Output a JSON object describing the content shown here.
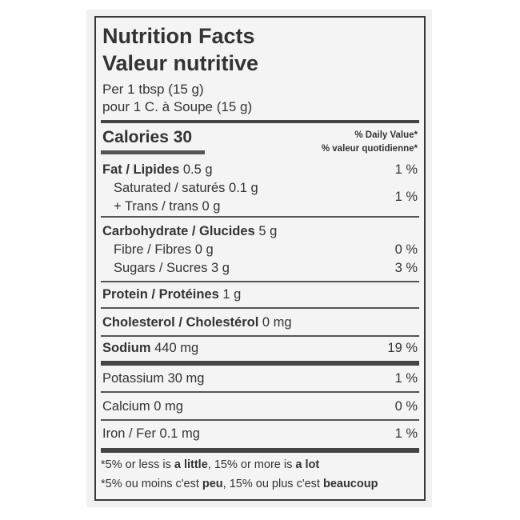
{
  "title_en": "Nutrition Facts",
  "title_fr": "Valeur nutritive",
  "serving_en": "Per 1 tbsp (15 g)",
  "serving_fr": "pour 1 C. à Soupe (15 g)",
  "calories": {
    "label": "Calories",
    "value": "30"
  },
  "dv_header_en": "% Daily Value*",
  "dv_header_fr": "% valeur quotidienne*",
  "nutrients": {
    "fat": {
      "label": "Fat / Lipides",
      "amount": "0.5 g",
      "dv": "1 %"
    },
    "saturated": {
      "label": "Saturated / saturés",
      "amount": "0.1 g"
    },
    "trans": {
      "label": "+ Trans / trans",
      "amount": "0 g"
    },
    "sat_trans_dv": "1 %",
    "carb": {
      "label": "Carbohydrate / Glucides",
      "amount": "5 g"
    },
    "fibre": {
      "label": "Fibre / Fibres",
      "amount": "0 g",
      "dv": "0 %"
    },
    "sugars": {
      "label": "Sugars / Sucres",
      "amount": "3 g",
      "dv": "3 %"
    },
    "protein": {
      "label": "Protein / Protéines",
      "amount": "1 g"
    },
    "cholesterol": {
      "label": "Cholesterol / Cholestérol",
      "amount": "0 mg"
    },
    "sodium": {
      "label": "Sodium",
      "amount": "440 mg",
      "dv": "19 %"
    },
    "potassium": {
      "label": "Potassium",
      "amount": "30 mg",
      "dv": "1 %"
    },
    "calcium": {
      "label": "Calcium",
      "amount": "0 mg",
      "dv": "0 %"
    },
    "iron": {
      "label": "Iron / Fer",
      "amount": "0.1 mg",
      "dv": "1 %"
    }
  },
  "footnote_en": {
    "a": "*5% or less is ",
    "b": "a little",
    "c": ", 15% or more is ",
    "d": "a lot"
  },
  "footnote_fr": {
    "a": "*5% ou moins c'est ",
    "b": "peu",
    "c": ", 15% ou plus c'est ",
    "d": "beaucoup"
  }
}
